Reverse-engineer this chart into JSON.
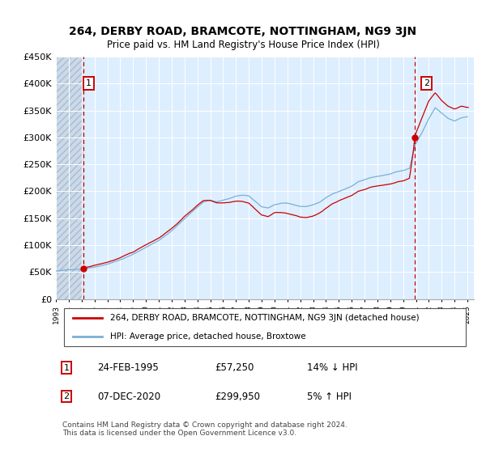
{
  "title": "264, DERBY ROAD, BRAMCOTE, NOTTINGHAM, NG9 3JN",
  "subtitle": "Price paid vs. HM Land Registry's House Price Index (HPI)",
  "ylim": [
    0,
    450000
  ],
  "yticks": [
    0,
    50000,
    100000,
    150000,
    200000,
    250000,
    300000,
    350000,
    400000,
    450000
  ],
  "ytick_labels": [
    "£0",
    "£50K",
    "£100K",
    "£150K",
    "£200K",
    "£250K",
    "£300K",
    "£350K",
    "£400K",
    "£450K"
  ],
  "background_color": "#ffffff",
  "plot_bg_color": "#ddeeff",
  "grid_color": "#ffffff",
  "point1_x": 1995.15,
  "point1_y": 57250,
  "point1_label": "1",
  "point2_x": 2020.93,
  "point2_y": 299950,
  "point2_label": "2",
  "legend_line1": "264, DERBY ROAD, BRAMCOTE, NOTTINGHAM, NG9 3JN (detached house)",
  "legend_line2": "HPI: Average price, detached house, Broxtowe",
  "table_rows": [
    {
      "num": "1",
      "date": "24-FEB-1995",
      "price": "£57,250",
      "hpi": "14% ↓ HPI"
    },
    {
      "num": "2",
      "date": "07-DEC-2020",
      "price": "£299,950",
      "hpi": "5% ↑ HPI"
    }
  ],
  "footnote": "Contains HM Land Registry data © Crown copyright and database right 2024.\nThis data is licensed under the Open Government Licence v3.0.",
  "line_color_red": "#cc0000",
  "line_color_blue": "#7ab0d4",
  "xlim_left": 1993.0,
  "xlim_right": 2025.5,
  "xtick_years": [
    1993,
    1994,
    1995,
    1996,
    1997,
    1998,
    1999,
    2000,
    2001,
    2002,
    2003,
    2004,
    2005,
    2006,
    2007,
    2008,
    2009,
    2010,
    2011,
    2012,
    2013,
    2014,
    2015,
    2016,
    2017,
    2018,
    2019,
    2020,
    2021,
    2022,
    2023,
    2024,
    2025
  ]
}
